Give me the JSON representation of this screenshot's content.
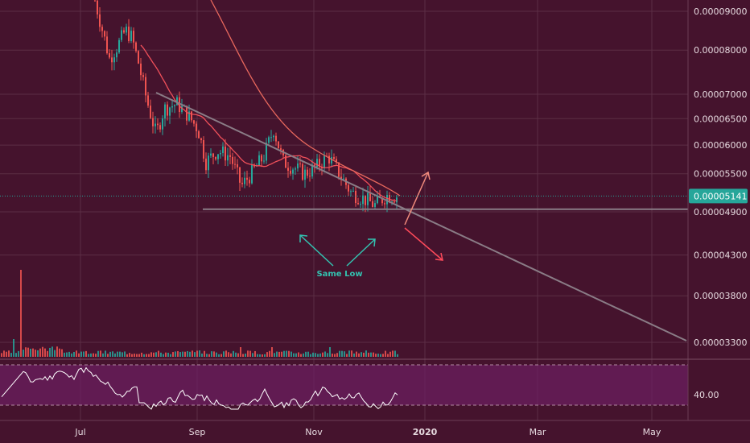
{
  "colors": {
    "background": "#45132d",
    "grid": "#5c2e45",
    "bull": "#26a69a",
    "bear": "#ef5350",
    "trendline": "#8a7c86",
    "ma_fast": "#f0505a",
    "ma_slow": "#e8685d",
    "rsi_line": "#ffffff",
    "rsi_band": "#6e1f63",
    "arrow_up": "#f08a7c",
    "arrow_down": "#ff4a5a",
    "annotation": "#33c2b0",
    "price_badge": "#26a69a"
  },
  "chart_data": {
    "type": "candlestick",
    "y_axis": {
      "scale": "log",
      "ticks": [
        "0.00009000",
        "0.00008000",
        "0.00007000",
        "0.00006500",
        "0.00006000",
        "0.00005500",
        "0.00004900",
        "0.00004300",
        "0.00003800",
        "0.00003300"
      ]
    },
    "x_axis": {
      "ticks": [
        {
          "label": "Jul",
          "bold": false
        },
        {
          "label": "Sep",
          "bold": false
        },
        {
          "label": "Nov",
          "bold": false
        },
        {
          "label": "2020",
          "bold": true
        },
        {
          "label": "Mar",
          "bold": false
        },
        {
          "label": "May",
          "bold": false
        }
      ]
    },
    "last_price": "0.00005141",
    "support_level": 4.94e-05,
    "annotation": "Same Low",
    "rsi": {
      "label": "40.00",
      "upper_band": 70,
      "lower_band": 30
    }
  }
}
